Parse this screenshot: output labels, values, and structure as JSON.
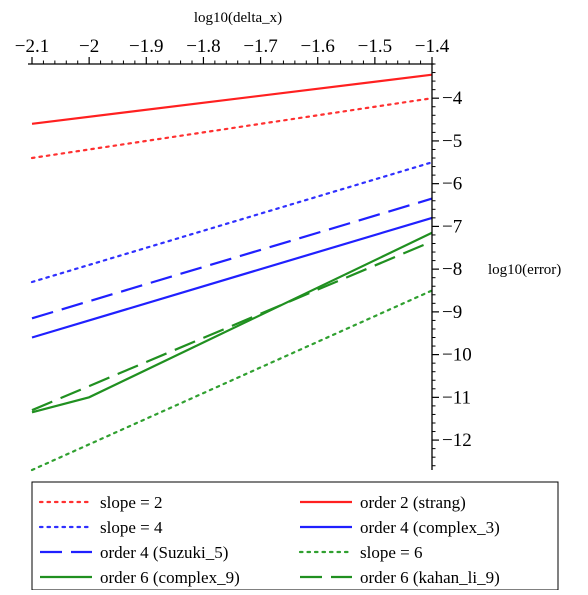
{
  "chart_data": {
    "type": "line",
    "xlabel": "log10(delta_x)",
    "ylabel": "log10(error)",
    "xlim": [
      -2.1,
      -1.4
    ],
    "ylim": [
      -12.7,
      -3.2
    ],
    "x_ticks": [
      -2.1,
      -2,
      -1.9,
      -1.8,
      -1.7,
      -1.6,
      -1.5,
      -1.4
    ],
    "x_tick_labels": [
      "−2.1",
      "−2",
      "−1.9",
      "−1.8",
      "−1.7",
      "−1.6",
      "−1.5",
      "−1.4"
    ],
    "y_ticks": [
      -4,
      -5,
      -6,
      -7,
      -8,
      -9,
      -10,
      -11,
      -12
    ],
    "y_tick_labels": [
      "−4",
      "−5",
      "−6",
      "−7",
      "−8",
      "−9",
      "−10",
      "−11",
      "−12"
    ],
    "grid": false,
    "legend_position": "bottom",
    "series": [
      {
        "name": "slope = 2",
        "color": "#ff3030",
        "dash": "dotted",
        "x": [
          -2.1,
          -1.4
        ],
        "y": [
          -5.4,
          -4.0
        ]
      },
      {
        "name": "order 2 (strang)",
        "color": "#ff2020",
        "dash": "solid",
        "x": [
          -2.1,
          -1.4
        ],
        "y": [
          -4.6,
          -3.45
        ]
      },
      {
        "name": "slope = 4",
        "color": "#3030ff",
        "dash": "dotted",
        "x": [
          -2.1,
          -1.4
        ],
        "y": [
          -8.3,
          -5.5
        ]
      },
      {
        "name": "order 4 (complex_3)",
        "color": "#2020ff",
        "dash": "solid",
        "x": [
          -2.1,
          -1.4
        ],
        "y": [
          -9.6,
          -6.8
        ]
      },
      {
        "name": "order 4 (Suzuki_5)",
        "color": "#2020ff",
        "dash": "dashed",
        "x": [
          -2.1,
          -1.4
        ],
        "y": [
          -9.15,
          -6.35
        ]
      },
      {
        "name": "slope = 6",
        "color": "#30a030",
        "dash": "dotted",
        "x": [
          -2.1,
          -1.4
        ],
        "y": [
          -12.7,
          -8.5
        ]
      },
      {
        "name": "order 6 (complex_9)",
        "color": "#209020",
        "dash": "solid",
        "x": [
          -2.1,
          -2.0,
          -1.4
        ],
        "y": [
          -11.35,
          -11.0,
          -7.15
        ]
      },
      {
        "name": "order 6 (kahan_li_9)",
        "color": "#209020",
        "dash": "dashed",
        "x": [
          -2.1,
          -1.4
        ],
        "y": [
          -11.3,
          -7.35
        ]
      }
    ]
  }
}
